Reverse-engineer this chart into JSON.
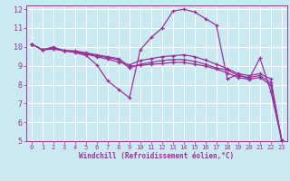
{
  "xlabel": "Windchill (Refroidissement éolien,°C)",
  "bg_color": "#cbe9f0",
  "grid_color": "#ffffff",
  "line_color": "#993399",
  "xlim": [
    -0.5,
    23.5
  ],
  "ylim": [
    5,
    12.2
  ],
  "xticks": [
    0,
    1,
    2,
    3,
    4,
    5,
    6,
    7,
    8,
    9,
    10,
    11,
    12,
    13,
    14,
    15,
    16,
    17,
    18,
    19,
    20,
    21,
    22,
    23
  ],
  "yticks": [
    5,
    6,
    7,
    8,
    9,
    10,
    11,
    12
  ],
  "lines": [
    {
      "x": [
        0,
        1,
        2,
        3,
        4,
        5,
        6,
        7,
        8,
        9,
        10,
        11,
        12,
        13,
        14,
        15,
        16,
        17,
        18,
        19,
        20,
        21,
        22,
        23
      ],
      "y": [
        10.15,
        9.85,
        10.0,
        9.8,
        9.7,
        9.55,
        9.05,
        8.2,
        7.75,
        7.3,
        9.85,
        10.5,
        11.0,
        11.9,
        12.0,
        11.85,
        11.5,
        11.15,
        8.3,
        8.55,
        8.3,
        9.4,
        7.65,
        5.05
      ]
    },
    {
      "x": [
        0,
        1,
        2,
        3,
        4,
        5,
        6,
        7,
        8,
        9,
        10,
        11,
        12,
        13,
        14,
        15,
        16,
        17,
        18,
        19,
        20,
        21,
        22,
        23
      ],
      "y": [
        10.15,
        9.85,
        9.95,
        9.8,
        9.73,
        9.62,
        9.48,
        9.35,
        9.2,
        9.05,
        9.28,
        9.38,
        9.48,
        9.53,
        9.58,
        9.48,
        9.3,
        9.08,
        8.85,
        8.58,
        8.48,
        8.58,
        8.3,
        5.05
      ]
    },
    {
      "x": [
        0,
        1,
        2,
        3,
        4,
        5,
        6,
        7,
        8,
        9,
        10,
        11,
        12,
        13,
        14,
        15,
        16,
        17,
        18,
        19,
        20,
        21,
        22,
        23
      ],
      "y": [
        10.15,
        9.85,
        9.92,
        9.78,
        9.75,
        9.65,
        9.53,
        9.43,
        9.32,
        8.88,
        9.08,
        9.18,
        9.28,
        9.33,
        9.33,
        9.23,
        9.08,
        8.88,
        8.78,
        8.48,
        8.38,
        8.48,
        8.1,
        5.05
      ]
    },
    {
      "x": [
        0,
        1,
        2,
        3,
        4,
        5,
        6,
        7,
        8,
        9,
        10,
        11,
        12,
        13,
        14,
        15,
        16,
        17,
        18,
        19,
        20,
        21,
        22,
        23
      ],
      "y": [
        10.15,
        9.85,
        9.88,
        9.82,
        9.79,
        9.69,
        9.58,
        9.48,
        9.38,
        8.98,
        9.02,
        9.08,
        9.12,
        9.18,
        9.18,
        9.08,
        8.98,
        8.82,
        8.62,
        8.38,
        8.28,
        8.38,
        7.98,
        5.05
      ]
    }
  ]
}
